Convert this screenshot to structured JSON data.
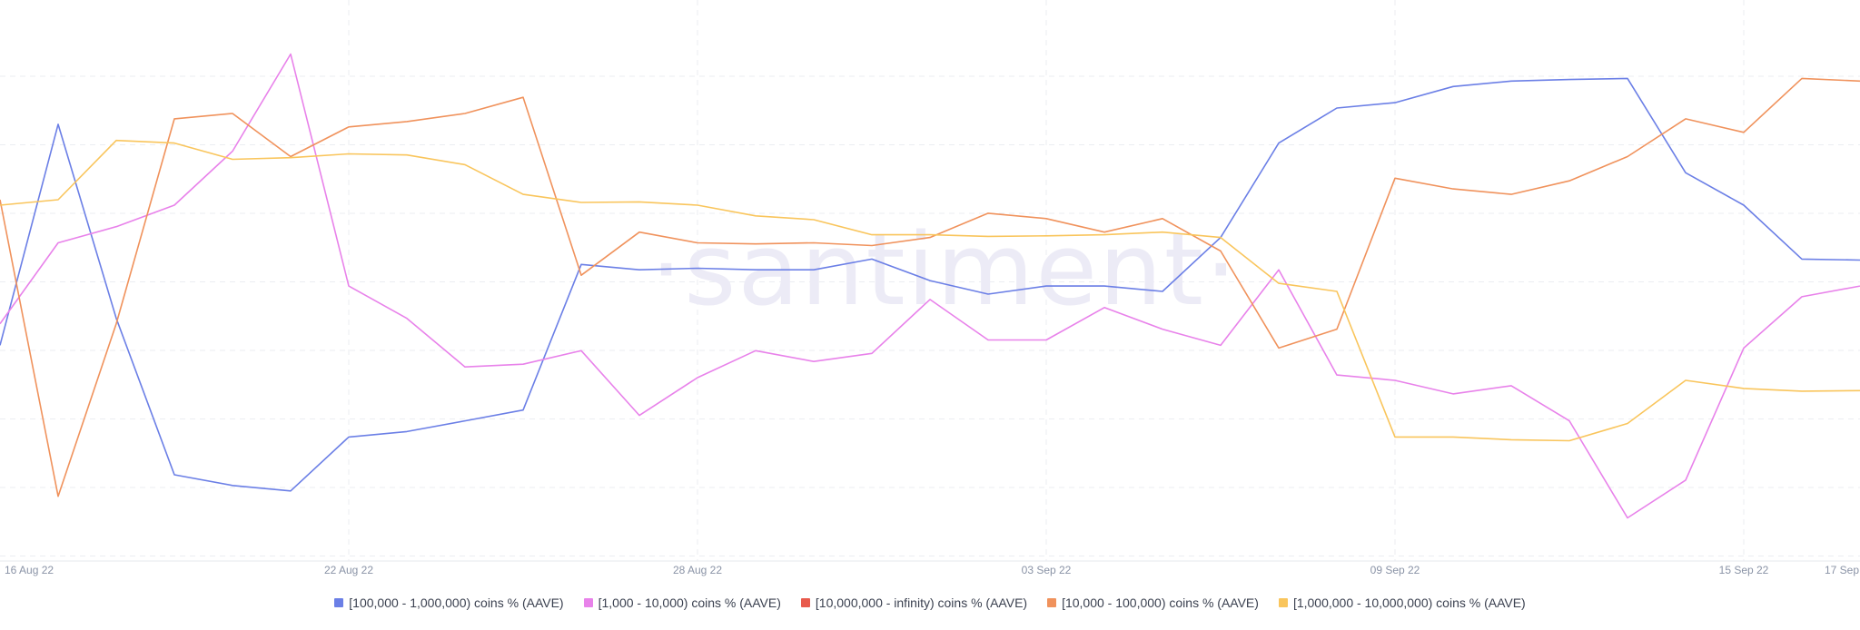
{
  "watermark": "·santiment·",
  "chart_data": {
    "type": "line",
    "title": "",
    "xlabel": "",
    "ylabel": "",
    "x_ticks": [
      "16 Aug 22",
      "22 Aug 22",
      "28 Aug 22",
      "03 Sep 22",
      "09 Sep 22",
      "15 Sep 22",
      "17 Sep"
    ],
    "x_tick_days": [
      0,
      6,
      12,
      18,
      24,
      30,
      32
    ],
    "y_range": [
      0,
      100
    ],
    "y_axis_labels_visible": false,
    "grid": true,
    "legend_position": "bottom",
    "series": [
      {
        "name": "[100,000  - 1,000,000) coins % (AAVE)",
        "color": "#6b7fe6",
        "x": [
          0,
          1,
          2,
          3,
          4,
          5,
          6,
          7,
          8,
          9,
          10,
          11,
          12,
          13,
          14,
          15,
          16,
          17,
          18,
          19,
          20,
          21,
          22,
          23,
          24,
          25,
          26,
          27,
          28,
          29,
          30,
          31,
          32
        ],
        "values": [
          40,
          81,
          45,
          16,
          14,
          13,
          23,
          24,
          26,
          28,
          55,
          54,
          54.3,
          54,
          54,
          56,
          52,
          49.5,
          51,
          51,
          50,
          60,
          77.5,
          84,
          85,
          88,
          89,
          89.3,
          89.5,
          72,
          66,
          56,
          55.8
        ]
      },
      {
        "name": "[1,000 - 10,000) coins % (AAVE)",
        "color": "#e882ea",
        "x": [
          0,
          1,
          2,
          3,
          4,
          5,
          6,
          7,
          8,
          9,
          10,
          11,
          12,
          13,
          14,
          15,
          16,
          17,
          18,
          19,
          20,
          21,
          22,
          23,
          24,
          25,
          26,
          27,
          28,
          29,
          30,
          31,
          32
        ],
        "values": [
          44,
          59,
          62,
          66,
          76,
          94,
          51,
          45,
          36,
          36.5,
          39,
          27,
          34,
          39,
          37,
          38.5,
          48.5,
          41,
          41,
          47,
          43,
          40,
          54,
          34.5,
          33.5,
          31,
          32.5,
          26,
          8,
          15,
          39.5,
          49,
          51
        ]
      },
      {
        "name": "[10,000,000 - infinity) coins % (AAVE)",
        "color": "#e85a4c",
        "x": [],
        "values": []
      },
      {
        "name": "[10,000 - 100,000) coins % (AAVE)",
        "color": "#f0925c",
        "x": [
          0,
          1,
          2,
          3,
          4,
          5,
          6,
          7,
          8,
          9,
          10,
          11,
          12,
          13,
          14,
          15,
          16,
          17,
          18,
          19,
          20,
          21,
          22,
          23,
          24,
          25,
          26,
          27,
          28,
          29,
          30,
          31,
          32
        ],
        "values": [
          67,
          12,
          44,
          82,
          83,
          75,
          80.5,
          81.5,
          83,
          86,
          53,
          61,
          59,
          58.8,
          59,
          58.5,
          60,
          64.5,
          63.5,
          61,
          63.5,
          57.5,
          39.5,
          43,
          71,
          69,
          68,
          70.5,
          75,
          82,
          79.5,
          89.5,
          89
        ]
      },
      {
        "name": "[1,000,000 - 10,000,000) coins % (AAVE)",
        "color": "#f9c55c",
        "x": [
          0,
          1,
          2,
          3,
          4,
          5,
          6,
          7,
          8,
          9,
          10,
          11,
          12,
          13,
          14,
          15,
          16,
          17,
          18,
          19,
          20,
          21,
          22,
          23,
          24,
          25,
          26,
          27,
          28,
          29,
          30,
          31,
          32
        ],
        "values": [
          66,
          67,
          78,
          77.5,
          74.5,
          74.8,
          75.5,
          75.3,
          73.5,
          68,
          66.5,
          66.6,
          66,
          64,
          63.3,
          60.5,
          60.5,
          60.2,
          60.3,
          60.5,
          61,
          60,
          51.5,
          50,
          23,
          23,
          22.5,
          22.3,
          25.5,
          33.5,
          32,
          31.5,
          31.6
        ]
      }
    ]
  }
}
